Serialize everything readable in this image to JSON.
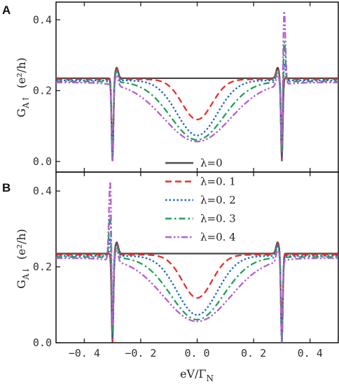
{
  "figure": {
    "xlabel": "eV/Γ_N",
    "xlabel_main": "eV/Γ",
    "xlabel_sub": "N"
  },
  "chart_data": [
    {
      "type": "line",
      "panel": "A",
      "panel_label": "A",
      "ylabel": "G_{A↑} (e²/h)",
      "ylabel_main": "G",
      "ylabel_sub": "A↑",
      "ylabel_unit": "(e²/h)",
      "xlim": [
        -0.5,
        0.5
      ],
      "ylim": [
        -0.03,
        0.45
      ],
      "xticks": [
        -0.4,
        -0.2,
        0.0,
        0.2,
        0.4
      ],
      "yticks": [
        0.0,
        0.2,
        0.4
      ],
      "ytick_labels": [
        "0.0",
        "0.2",
        "0.4"
      ],
      "grid": false,
      "legend": "none",
      "features": {
        "dip_positions": [
          -0.3,
          0.3
        ],
        "peak_positions": [
          -0.28,
          0.31
        ],
        "edge_value": 0.235
      },
      "series": [
        {
          "name": "λ=0",
          "color": "#4d4d4d",
          "dash": "solid",
          "lambda": 0.0,
          "x": [
            -0.5,
            -0.4,
            -0.32,
            -0.3,
            -0.28,
            -0.2,
            -0.1,
            0.0,
            0.1,
            0.2,
            0.28,
            0.3,
            0.32,
            0.4,
            0.5
          ],
          "values": [
            0.235,
            0.222,
            0.185,
            0.0,
            0.255,
            0.23,
            0.222,
            0.22,
            0.222,
            0.23,
            0.258,
            0.0,
            0.19,
            0.223,
            0.236
          ]
        },
        {
          "name": "λ=0. 1",
          "color": "#e8302a",
          "dash": "dash",
          "lambda": 0.1,
          "x": [
            -0.5,
            -0.4,
            -0.3,
            -0.2,
            -0.1,
            -0.03,
            0.0,
            0.03,
            0.1,
            0.2,
            0.3,
            0.31,
            0.4,
            0.5
          ],
          "values": [
            0.232,
            0.224,
            0.0,
            0.225,
            0.21,
            0.18,
            0.08,
            0.18,
            0.21,
            0.225,
            0.0,
            0.27,
            0.226,
            0.234
          ]
        },
        {
          "name": "λ=0. 2",
          "color": "#1a66cc",
          "dash": "dot",
          "lambda": 0.2,
          "x": [
            -0.5,
            -0.4,
            -0.3,
            -0.2,
            -0.1,
            0.0,
            0.1,
            0.2,
            0.3,
            0.31,
            0.4,
            0.5
          ],
          "values": [
            0.228,
            0.226,
            0.0,
            0.21,
            0.185,
            0.07,
            0.185,
            0.21,
            0.0,
            0.3,
            0.228,
            0.23
          ]
        },
        {
          "name": "λ=0. 3",
          "color": "#22a05a",
          "dash": "dashdot",
          "lambda": 0.3,
          "x": [
            -0.5,
            -0.4,
            -0.3,
            -0.2,
            -0.1,
            0.0,
            0.1,
            0.2,
            0.3,
            0.31,
            0.4,
            0.5
          ],
          "values": [
            0.22,
            0.228,
            0.0,
            0.19,
            0.15,
            0.06,
            0.15,
            0.19,
            0.0,
            0.36,
            0.23,
            0.222
          ]
        },
        {
          "name": "λ=0. 4",
          "color": "#b45fd4",
          "dash": "dashdotdot",
          "lambda": 0.4,
          "x": [
            -0.5,
            -0.4,
            -0.3,
            -0.2,
            -0.1,
            0.0,
            0.1,
            0.2,
            0.3,
            0.31,
            0.4,
            0.5
          ],
          "values": [
            0.21,
            0.23,
            0.0,
            0.165,
            0.12,
            0.05,
            0.12,
            0.165,
            0.0,
            0.45,
            0.232,
            0.214
          ]
        }
      ]
    },
    {
      "type": "line",
      "panel": "B",
      "panel_label": "B",
      "ylabel": "G_{A↓} (e²/h)",
      "ylabel_main": "G",
      "ylabel_sub": "A↓",
      "ylabel_unit": "(e²/h)",
      "xlim": [
        -0.5,
        0.5
      ],
      "ylim": [
        0.0,
        0.45
      ],
      "xticks": [
        -0.4,
        -0.2,
        0.0,
        0.2,
        0.4
      ],
      "xtick_labels": [
        "−0. 4",
        "−0. 2",
        "0. 0",
        "0. 2",
        "0. 4"
      ],
      "yticks": [
        0.0,
        0.2,
        0.4
      ],
      "ytick_labels": [
        "0.0",
        "0.2",
        "0.4"
      ],
      "grid": false,
      "legend": "top-center",
      "features": {
        "dip_positions": [
          -0.3,
          0.3
        ],
        "peak_positions": [
          -0.31,
          0.28
        ],
        "edge_value": 0.235
      },
      "series": [
        {
          "name": "λ=0",
          "color": "#4d4d4d",
          "dash": "solid",
          "lambda": 0.0
        },
        {
          "name": "λ=0. 1",
          "color": "#e8302a",
          "dash": "dash",
          "lambda": 0.1
        },
        {
          "name": "λ=0. 2",
          "color": "#1a66cc",
          "dash": "dot",
          "lambda": 0.2
        },
        {
          "name": "λ=0. 3",
          "color": "#22a05a",
          "dash": "dashdot",
          "lambda": 0.3
        },
        {
          "name": "λ=0. 4",
          "color": "#b45fd4",
          "dash": "dashdotdot",
          "lambda": 0.4
        }
      ]
    }
  ]
}
